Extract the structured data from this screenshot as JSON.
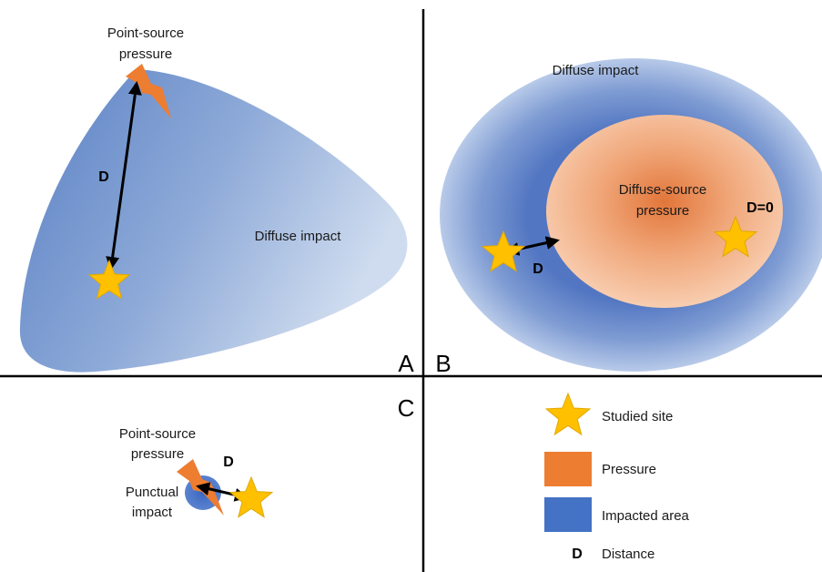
{
  "panels": {
    "a": {
      "letter": "A",
      "source_label_line1": "Point-source",
      "source_label_line2": "pressure",
      "distance_label": "D",
      "impact_label": "Diffuse impact"
    },
    "b": {
      "letter": "B",
      "impact_label": "Diffuse impact",
      "pressure_label_line1": "Diffuse-source",
      "pressure_label_line2": "pressure",
      "distance_label": "D",
      "zero_distance_label": "D=0"
    },
    "c": {
      "letter": "C",
      "source_label_line1": "Point-source",
      "source_label_line2": "pressure",
      "distance_label": "D",
      "impact_label_line1": "Punctual",
      "impact_label_line2": "impact"
    }
  },
  "legend": {
    "site_label": "Studied site",
    "pressure_label": "Pressure",
    "impact_label": "Impacted area",
    "distance_symbol": "D",
    "distance_label": "Distance"
  },
  "colors": {
    "impact_blue": "#4472c4",
    "impact_blue_light": "#b4c7e7",
    "pressure_orange": "#ed7d31",
    "pressure_orange_light": "#f8cbad",
    "site_yellow": "#ffc000"
  },
  "icons": {
    "site": "star-icon",
    "point_source": "lightning-bolt-icon",
    "distance": "double-arrow-icon"
  }
}
